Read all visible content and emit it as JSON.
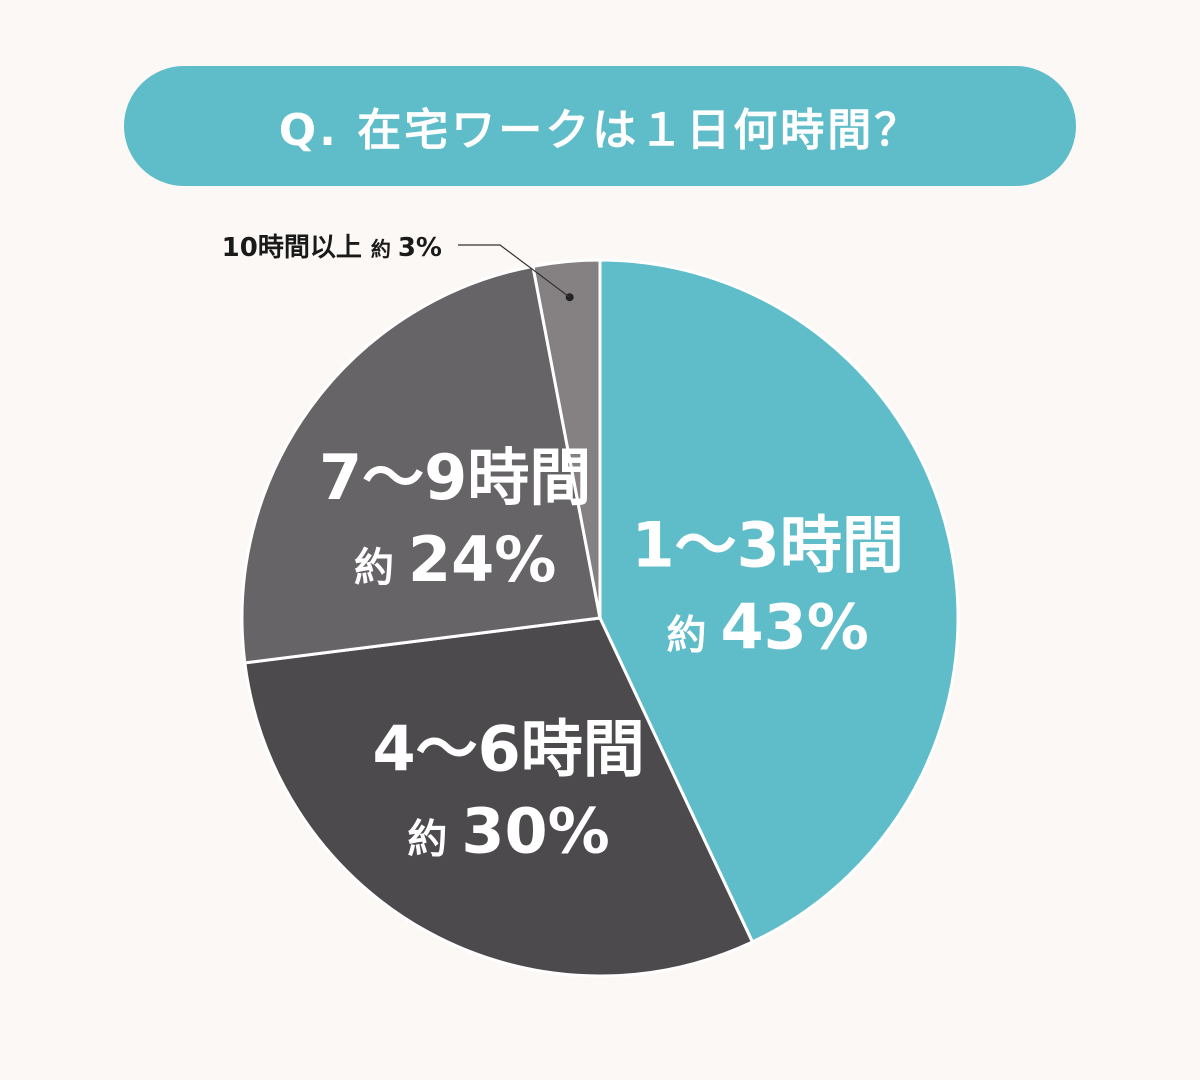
{
  "title": "Q. 在宅ワークは１日何時間？",
  "chart_data": {
    "type": "pie",
    "title": "Q. 在宅ワークは１日何時間？",
    "start_angle_deg": 0,
    "direction": "clockwise",
    "slices": [
      {
        "label": "1～3時間",
        "prefix": "約",
        "value": 43,
        "value_text": "43%",
        "color": "#5fbcc9"
      },
      {
        "label": "4～6時間",
        "prefix": "約",
        "value": 30,
        "value_text": "30%",
        "color": "#4d4a4e"
      },
      {
        "label": "7～9時間",
        "prefix": "約",
        "value": 24,
        "value_text": "24%",
        "color": "#676468"
      },
      {
        "label": "10時間以上",
        "prefix": "約",
        "value": 3,
        "value_text": "3%",
        "color": "#858082"
      }
    ]
  }
}
